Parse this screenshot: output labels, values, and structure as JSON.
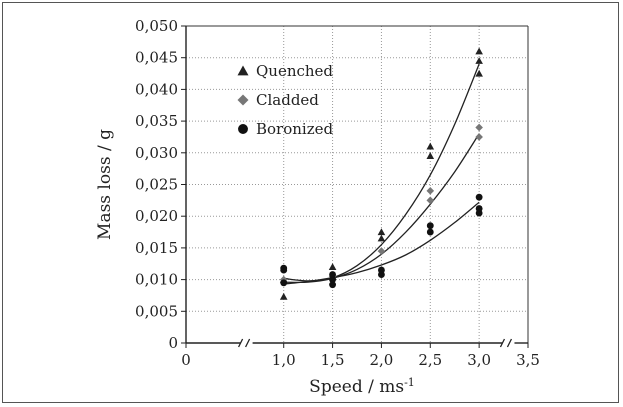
{
  "chart_data": {
    "type": "scatter",
    "xlabel": "Speed / ms",
    "xlabel_sup": "-1",
    "ylabel": "Mass loss / g",
    "xlim": [
      0,
      3.5
    ],
    "ylim": [
      0,
      0.05
    ],
    "x_ticks": [
      0,
      1.0,
      1.5,
      2.0,
      2.5,
      3.0,
      3.5
    ],
    "x_tick_labels": [
      "0",
      "1,0",
      "1,5",
      "2,0",
      "2,5",
      "3,0",
      "3,5"
    ],
    "y_ticks": [
      0,
      0.005,
      0.01,
      0.015,
      0.02,
      0.025,
      0.03,
      0.035,
      0.04,
      0.045,
      0.05
    ],
    "y_tick_labels": [
      "0",
      "0,005",
      "0,010",
      "0,015",
      "0,020",
      "0,025",
      "0,030",
      "0,035",
      "0,040",
      "0,045",
      "0,050"
    ],
    "grid": true,
    "legend_position": "top-left",
    "series": [
      {
        "name": "Quenched",
        "marker": "triangle",
        "color": "#222222",
        "points": [
          [
            1.0,
            0.0073
          ],
          [
            1.0,
            0.01
          ],
          [
            1.5,
            0.0105
          ],
          [
            1.5,
            0.012
          ],
          [
            2.0,
            0.0165
          ],
          [
            2.0,
            0.0175
          ],
          [
            2.5,
            0.0295
          ],
          [
            2.5,
            0.031
          ],
          [
            3.0,
            0.0425
          ],
          [
            3.0,
            0.0445
          ],
          [
            3.0,
            0.046
          ]
        ],
        "fit": [
          [
            1.0,
            0.0102
          ],
          [
            1.25,
            0.0098
          ],
          [
            1.5,
            0.0103
          ],
          [
            1.75,
            0.0122
          ],
          [
            2.0,
            0.0155
          ],
          [
            2.25,
            0.0203
          ],
          [
            2.5,
            0.0265
          ],
          [
            2.75,
            0.0345
          ],
          [
            3.0,
            0.044
          ]
        ]
      },
      {
        "name": "Cladded",
        "marker": "diamond",
        "color": "#777777",
        "points": [
          [
            1.0,
            0.01
          ],
          [
            1.5,
            0.0105
          ],
          [
            2.0,
            0.0145
          ],
          [
            2.5,
            0.024
          ],
          [
            2.5,
            0.0225
          ],
          [
            3.0,
            0.0325
          ],
          [
            3.0,
            0.034
          ]
        ],
        "fit": [
          [
            1.0,
            0.0096
          ],
          [
            1.25,
            0.0096
          ],
          [
            1.5,
            0.0102
          ],
          [
            1.75,
            0.0116
          ],
          [
            2.0,
            0.014
          ],
          [
            2.25,
            0.0175
          ],
          [
            2.5,
            0.0219
          ],
          [
            2.75,
            0.027
          ],
          [
            3.0,
            0.033
          ]
        ]
      },
      {
        "name": "Boronized",
        "marker": "circle",
        "color": "#111111",
        "points": [
          [
            1.0,
            0.0095
          ],
          [
            1.0,
            0.0115
          ],
          [
            1.0,
            0.0118
          ],
          [
            1.5,
            0.0092
          ],
          [
            1.5,
            0.01
          ],
          [
            1.5,
            0.0108
          ],
          [
            2.0,
            0.0108
          ],
          [
            2.0,
            0.0115
          ],
          [
            2.5,
            0.0175
          ],
          [
            2.5,
            0.0185
          ],
          [
            3.0,
            0.0205
          ],
          [
            3.0,
            0.0212
          ],
          [
            3.0,
            0.023
          ]
        ],
        "fit": [
          [
            1.0,
            0.0093
          ],
          [
            1.25,
            0.0097
          ],
          [
            1.5,
            0.0103
          ],
          [
            1.75,
            0.0111
          ],
          [
            2.0,
            0.0123
          ],
          [
            2.25,
            0.0139
          ],
          [
            2.5,
            0.0162
          ],
          [
            2.75,
            0.019
          ],
          [
            3.0,
            0.0222
          ]
        ]
      }
    ]
  }
}
